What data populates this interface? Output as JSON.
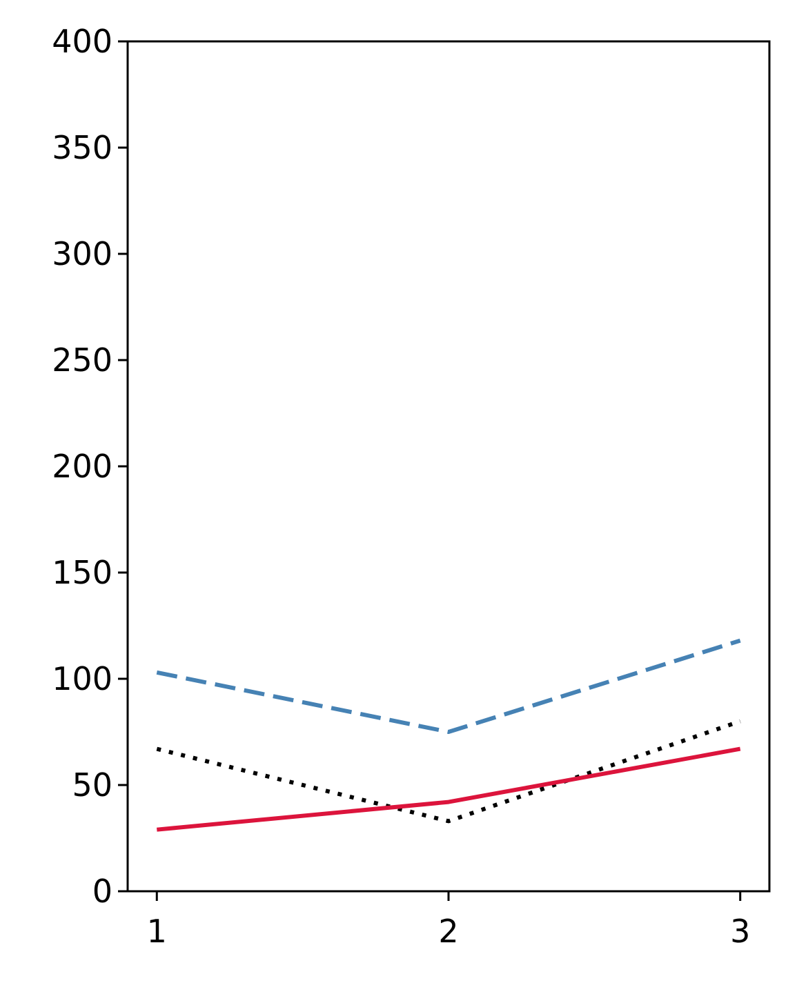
{
  "chart_data": {
    "type": "line",
    "title": "",
    "xlabel": "",
    "ylabel": "",
    "x": [
      1,
      2,
      3
    ],
    "x_ticks": [
      "1",
      "2",
      "3"
    ],
    "xlim": [
      0.9,
      3.1
    ],
    "ylim": [
      0,
      400
    ],
    "y_ticks": [
      "0",
      "50",
      "100",
      "150",
      "200",
      "250",
      "300",
      "350",
      "400"
    ],
    "grid": false,
    "legend": "none",
    "series": [
      {
        "values": [
          103,
          75,
          118
        ],
        "color": "#4682b4",
        "style": "dashed"
      },
      {
        "values": [
          67,
          33,
          80
        ],
        "color": "#000000",
        "style": "dotted"
      },
      {
        "values": [
          29,
          42,
          67
        ],
        "color": "#dc143c",
        "style": "solid"
      }
    ]
  }
}
